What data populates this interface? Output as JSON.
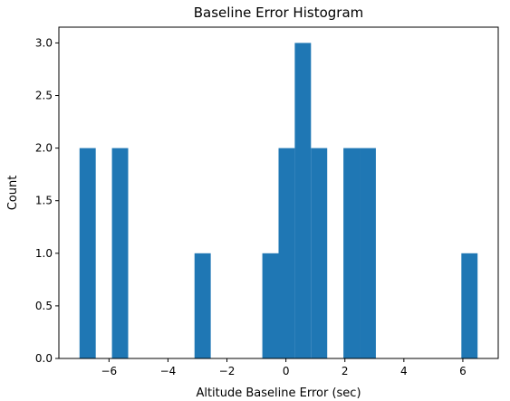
{
  "chart_data": {
    "type": "bar",
    "title": "Baseline Error Histogram",
    "xlabel": "Altitude Baseline Error (sec)",
    "ylabel": "Count",
    "xlim": [
      -7.7,
      7.2
    ],
    "ylim": [
      0,
      3.15
    ],
    "grid": false,
    "legend": "none",
    "bar_color": "#1f77b4",
    "x_ticks": [
      {
        "value": -6,
        "label": "−6"
      },
      {
        "value": -4,
        "label": "−4"
      },
      {
        "value": -2,
        "label": "−2"
      },
      {
        "value": 0,
        "label": "0"
      },
      {
        "value": 2,
        "label": "2"
      },
      {
        "value": 4,
        "label": "4"
      },
      {
        "value": 6,
        "label": "6"
      }
    ],
    "y_ticks": [
      {
        "value": 0,
        "label": "0.0"
      },
      {
        "value": 0.5,
        "label": "0.5"
      },
      {
        "value": 1,
        "label": "1.0"
      },
      {
        "value": 1.5,
        "label": "1.5"
      },
      {
        "value": 2,
        "label": "2.0"
      },
      {
        "value": 2.5,
        "label": "2.5"
      },
      {
        "value": 3,
        "label": "3.0"
      }
    ],
    "bins": [
      {
        "x0": -7.0,
        "x1": -6.45,
        "count": 2
      },
      {
        "x0": -5.9,
        "x1": -5.35,
        "count": 2
      },
      {
        "x0": -3.1,
        "x1": -2.55,
        "count": 1
      },
      {
        "x0": -0.8,
        "x1": -0.25,
        "count": 1
      },
      {
        "x0": -0.25,
        "x1": 0.3,
        "count": 2
      },
      {
        "x0": 0.3,
        "x1": 0.85,
        "count": 3
      },
      {
        "x0": 0.85,
        "x1": 1.4,
        "count": 2
      },
      {
        "x0": 1.95,
        "x1": 2.5,
        "count": 2
      },
      {
        "x0": 2.5,
        "x1": 3.05,
        "count": 2
      },
      {
        "x0": 5.95,
        "x1": 6.5,
        "count": 1
      }
    ]
  }
}
